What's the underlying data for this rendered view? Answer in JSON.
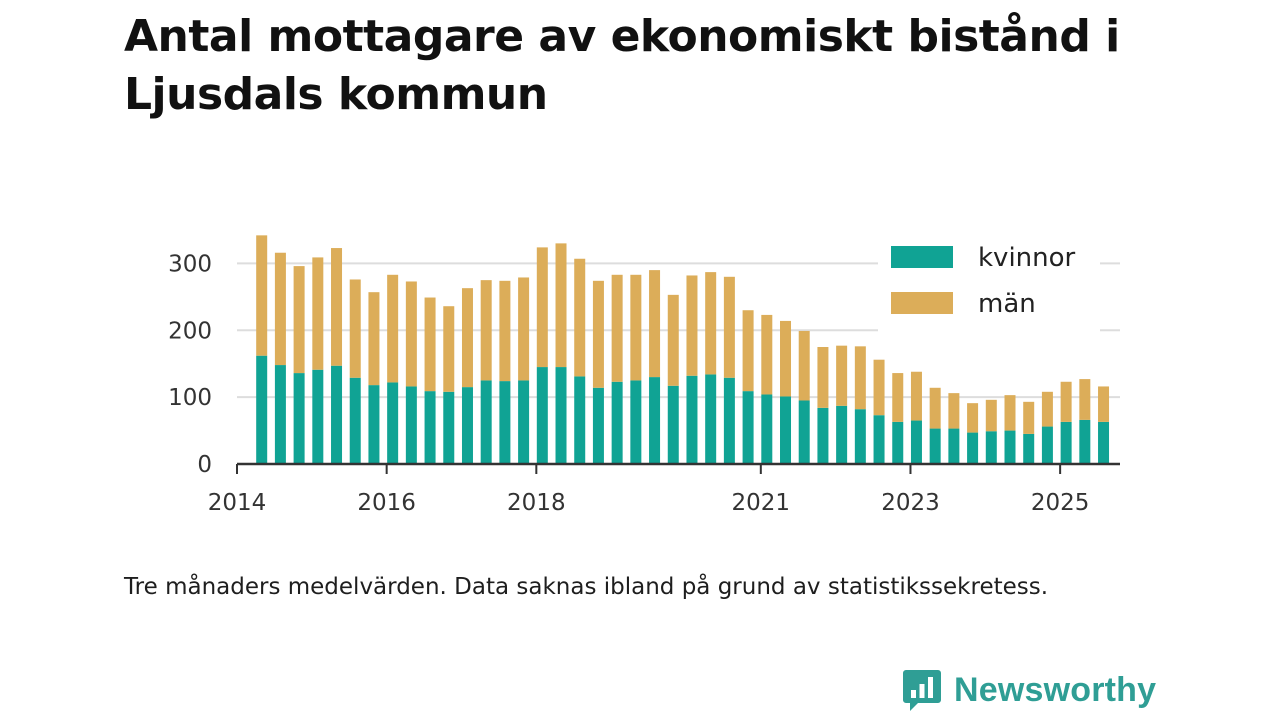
{
  "title": "Antal mottagare av ekonomiskt bistånd i Ljusdals kommun",
  "note": "Tre månaders medelvärden. Data saknas ibland på grund av statistikssekretess.",
  "brand": {
    "name": "Newsworthy",
    "icon": "newsworthy-logo-icon",
    "color": "#2f9e95"
  },
  "colors": {
    "kvinnor": "#10a394",
    "man": "#dcad59",
    "grid": "#dddddd",
    "axis": "#333333"
  },
  "chart_data": {
    "type": "bar",
    "stacked": true,
    "title": "Antal mottagare av ekonomiskt bistånd i Ljusdals kommun",
    "xlabel": "",
    "ylabel": "",
    "ylim": [
      0,
      350
    ],
    "yticks": [
      0,
      100,
      200,
      300
    ],
    "xlim": [
      2014.0,
      2025.8
    ],
    "xticks": [
      2014,
      2016,
      2018,
      2021,
      2023,
      2025
    ],
    "grid": true,
    "legend_position": "top-right",
    "x": [
      2014.33,
      2014.58,
      2014.83,
      2015.08,
      2015.33,
      2015.58,
      2015.83,
      2016.08,
      2016.33,
      2016.58,
      2016.83,
      2017.08,
      2017.33,
      2017.58,
      2017.83,
      2018.08,
      2018.33,
      2018.58,
      2018.83,
      2019.08,
      2019.33,
      2019.58,
      2019.83,
      2020.08,
      2020.33,
      2020.58,
      2020.83,
      2021.08,
      2021.33,
      2021.58,
      2021.83,
      2022.08,
      2022.33,
      2022.58,
      2022.83,
      2023.08,
      2023.33,
      2023.58,
      2023.83,
      2024.08,
      2024.33,
      2024.58,
      2024.83,
      2025.08,
      2025.33,
      2025.58
    ],
    "series": [
      {
        "name": "kvinnor",
        "values": [
          162,
          148,
          136,
          141,
          147,
          129,
          118,
          122,
          116,
          109,
          108,
          115,
          125,
          124,
          125,
          145,
          145,
          131,
          114,
          123,
          125,
          130,
          117,
          132,
          134,
          129,
          109,
          104,
          101,
          95,
          84,
          87,
          82,
          73,
          63,
          65,
          53,
          53,
          47,
          49,
          50,
          45,
          56,
          63,
          66,
          63
        ]
      },
      {
        "name": "män",
        "values": [
          180,
          168,
          160,
          168,
          176,
          147,
          139,
          161,
          157,
          140,
          128,
          148,
          150,
          150,
          154,
          179,
          185,
          176,
          160,
          160,
          158,
          160,
          136,
          150,
          153,
          151,
          121,
          119,
          113,
          104,
          91,
          90,
          94,
          83,
          73,
          73,
          61,
          53,
          44,
          47,
          53,
          48,
          52,
          60,
          61,
          53
        ]
      }
    ]
  }
}
